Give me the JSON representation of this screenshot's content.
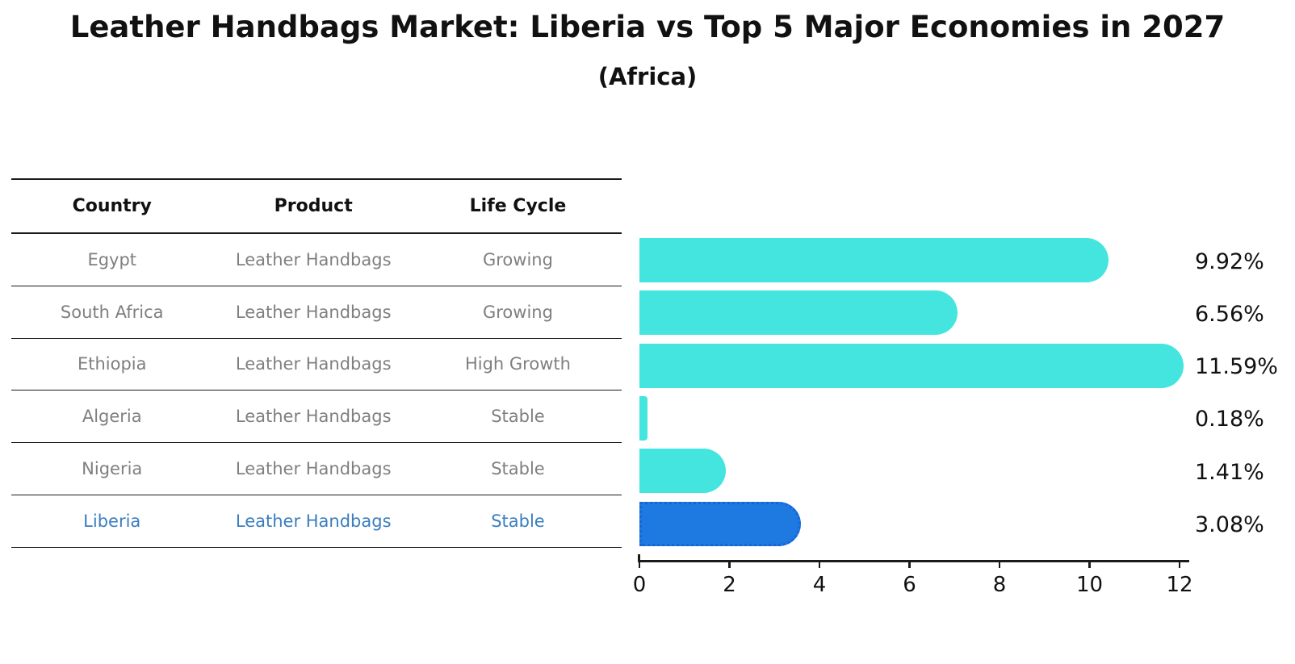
{
  "chart_data": {
    "type": "bar",
    "orientation": "horizontal",
    "title": "Leather Handbags Market: Liberia vs Top 5 Major Economies in 2027",
    "subtitle": "(Africa)",
    "categories": [
      "Egypt",
      "South Africa",
      "Ethiopia",
      "Algeria",
      "Nigeria",
      "Liberia"
    ],
    "values": [
      9.92,
      6.56,
      11.59,
      0.18,
      1.41,
      3.08
    ],
    "value_labels": [
      "9.92%",
      "6.56%",
      "11.59%",
      "0.18%",
      "1.41%",
      "3.08%"
    ],
    "xlim": [
      0,
      12
    ],
    "xticks": [
      0,
      2,
      4,
      6,
      8,
      10,
      12
    ],
    "grid": false,
    "legend": "none",
    "bar_color": "#44e5df",
    "highlight_index": 5,
    "highlight_color": "#1e79e1",
    "highlight_border_color": "#1565d8"
  },
  "table": {
    "headers": [
      "Country",
      "Product",
      "Life Cycle"
    ],
    "rows": [
      {
        "country": "Egypt",
        "product": "Leather Handbags",
        "life_cycle": "Growing",
        "highlight": false
      },
      {
        "country": "South Africa",
        "product": "Leather Handbags",
        "life_cycle": "Growing",
        "highlight": false
      },
      {
        "country": "Ethiopia",
        "product": "Leather Handbags",
        "life_cycle": "High Growth",
        "highlight": false
      },
      {
        "country": "Algeria",
        "product": "Leather Handbags",
        "life_cycle": "Stable",
        "highlight": false
      },
      {
        "country": "Nigeria",
        "product": "Leather Handbags",
        "life_cycle": "Stable",
        "highlight": false
      },
      {
        "country": "Liberia",
        "product": "Leather Handbags",
        "life_cycle": "Stable",
        "highlight": true
      }
    ]
  },
  "colors": {
    "text": "#111111",
    "muted_text": "#7f7f7f",
    "highlight_text": "#3a7ebf",
    "axis": "#1a1a1a"
  }
}
